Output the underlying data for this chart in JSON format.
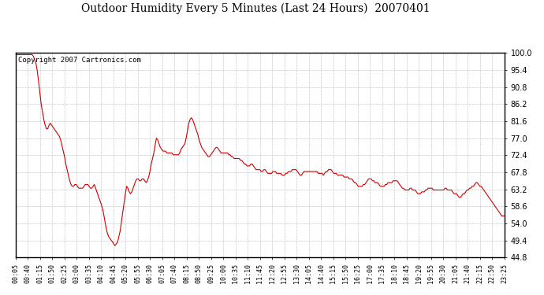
{
  "title": "Outdoor Humidity Every 5 Minutes (Last 24 Hours)  20070401",
  "copyright_text": "Copyright 2007 Cartronics.com",
  "line_color": "#cc0000",
  "background_color": "#ffffff",
  "grid_color": "#bbbbbb",
  "ylim": [
    44.8,
    100.0
  ],
  "yticks": [
    44.8,
    49.4,
    54.0,
    58.6,
    63.2,
    67.8,
    72.4,
    77.0,
    81.6,
    86.2,
    90.8,
    95.4,
    100.0
  ],
  "xtick_labels": [
    "00:05",
    "00:40",
    "01:15",
    "01:50",
    "02:25",
    "03:00",
    "03:35",
    "04:10",
    "04:45",
    "05:20",
    "05:55",
    "06:30",
    "07:05",
    "07:40",
    "08:15",
    "08:50",
    "09:25",
    "10:00",
    "10:35",
    "11:10",
    "11:45",
    "12:20",
    "12:55",
    "13:30",
    "14:05",
    "14:40",
    "15:15",
    "15:50",
    "16:25",
    "17:00",
    "17:35",
    "18:10",
    "18:45",
    "19:20",
    "19:55",
    "20:30",
    "21:05",
    "21:40",
    "22:15",
    "22:50",
    "23:25"
  ],
  "humidity_values": [
    99.5,
    99.5,
    99.5,
    99.5,
    99.5,
    99.5,
    99.5,
    99.5,
    99.5,
    99.5,
    99.5,
    99.5,
    99.5,
    99.5,
    99.0,
    98.0,
    97.0,
    95.0,
    92.0,
    89.0,
    86.0,
    84.0,
    82.0,
    80.5,
    79.5,
    79.5,
    80.5,
    81.0,
    80.5,
    80.0,
    79.5,
    79.0,
    78.5,
    78.0,
    77.5,
    76.5,
    75.0,
    73.5,
    72.0,
    70.0,
    68.5,
    67.0,
    65.5,
    64.5,
    64.0,
    64.0,
    64.5,
    64.5,
    64.0,
    63.5,
    63.5,
    63.5,
    63.5,
    64.0,
    64.5,
    64.5,
    64.5,
    64.0,
    63.5,
    63.5,
    64.0,
    64.5,
    63.5,
    62.5,
    61.5,
    60.5,
    59.5,
    58.5,
    57.0,
    55.0,
    53.0,
    51.5,
    50.5,
    50.0,
    49.5,
    49.0,
    48.5,
    48.0,
    48.5,
    49.0,
    50.5,
    52.0,
    54.5,
    57.0,
    59.5,
    62.0,
    64.0,
    63.5,
    62.5,
    62.0,
    62.5,
    63.5,
    64.5,
    65.5,
    66.0,
    66.0,
    65.5,
    65.5,
    66.0,
    66.0,
    65.5,
    65.0,
    65.5,
    66.5,
    68.0,
    70.0,
    71.5,
    73.0,
    75.0,
    77.0,
    76.5,
    75.5,
    74.5,
    74.0,
    73.5,
    73.5,
    73.5,
    73.0,
    73.0,
    73.0,
    73.0,
    73.0,
    72.5,
    72.5,
    72.5,
    72.5,
    72.5,
    73.0,
    74.0,
    74.5,
    75.0,
    75.5,
    77.0,
    79.0,
    81.0,
    82.0,
    82.5,
    82.0,
    81.0,
    80.0,
    79.0,
    78.0,
    76.5,
    75.5,
    74.5,
    74.0,
    73.5,
    73.0,
    72.5,
    72.0,
    72.0,
    72.5,
    73.0,
    73.5,
    74.0,
    74.5,
    74.5,
    74.0,
    73.5,
    73.0,
    73.0,
    73.0,
    73.0,
    73.0,
    73.0,
    72.5,
    72.5,
    72.0,
    72.0,
    71.5,
    71.5,
    71.5,
    71.5,
    71.5,
    71.0,
    71.0,
    70.5,
    70.0,
    70.0,
    69.5,
    69.5,
    69.5,
    70.0,
    70.0,
    69.5,
    69.0,
    68.5,
    68.5,
    68.5,
    68.5,
    68.0,
    68.0,
    68.5,
    68.5,
    68.0,
    67.5,
    67.5,
    67.5,
    67.5,
    68.0,
    68.0,
    68.0,
    67.5,
    67.5,
    67.5,
    67.5,
    67.0,
    67.0,
    67.0,
    67.5,
    67.5,
    68.0,
    68.0,
    68.0,
    68.5,
    68.5,
    68.5,
    68.5,
    68.0,
    67.5,
    67.0,
    67.0,
    67.5,
    68.0,
    68.0,
    68.0,
    68.0,
    68.0,
    68.0,
    68.0,
    68.0,
    68.0,
    68.0,
    68.0,
    67.5,
    67.5,
    67.5,
    67.5,
    67.0,
    67.5,
    68.0,
    68.0,
    68.5,
    68.5,
    68.5,
    68.0,
    67.5,
    67.5,
    67.5,
    67.0,
    67.0,
    67.0,
    67.0,
    67.0,
    66.5,
    66.5,
    66.5,
    66.5,
    66.0,
    66.0,
    66.0,
    65.5,
    65.0,
    65.0,
    64.5,
    64.0,
    64.0,
    64.0,
    64.0,
    64.5,
    64.5,
    65.0,
    65.5,
    66.0,
    66.0,
    66.0,
    65.5,
    65.5,
    65.0,
    65.0,
    65.0,
    64.5,
    64.0,
    64.0,
    64.0,
    64.0,
    64.5,
    64.5,
    65.0,
    65.0,
    65.0,
    65.0,
    65.5,
    65.5,
    65.5,
    65.5,
    65.0,
    64.5,
    64.0,
    63.5,
    63.5,
    63.0,
    63.0,
    63.0,
    63.0,
    63.5,
    63.5,
    63.0,
    63.0,
    63.0,
    62.5,
    62.0,
    62.0,
    62.0,
    62.5,
    62.5,
    62.5,
    63.0,
    63.0,
    63.5,
    63.5,
    63.5,
    63.5,
    63.0,
    63.0,
    63.0,
    63.0,
    63.0,
    63.0,
    63.0,
    63.0,
    63.0,
    63.5,
    63.5,
    63.0,
    63.0,
    63.0,
    63.0,
    62.5,
    62.0,
    62.0,
    62.0,
    61.5,
    61.0,
    61.0,
    61.5,
    62.0,
    62.0,
    62.5,
    63.0,
    63.0,
    63.5,
    63.5,
    64.0,
    64.0,
    64.5,
    65.0,
    65.0,
    64.5,
    64.0,
    64.0,
    63.5,
    63.0,
    62.5,
    62.0,
    61.5,
    61.0,
    60.5,
    60.0,
    59.5,
    59.0,
    58.5,
    58.0,
    57.5,
    57.0,
    56.5,
    56.0,
    56.0,
    56.0
  ],
  "title_fontsize": 10,
  "tick_fontsize": 7,
  "xtick_fontsize": 6
}
